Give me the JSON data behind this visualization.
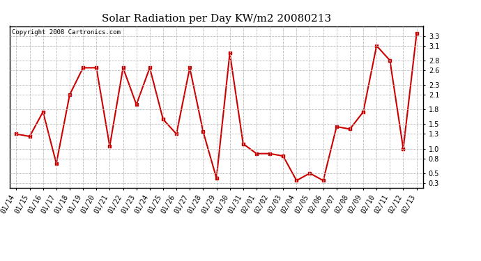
{
  "title": "Solar Radiation per Day KW/m2 20080213",
  "copyright_text": "Copyright 2008 Cartronics.com",
  "dates": [
    "01/14",
    "01/15",
    "01/16",
    "01/17",
    "01/18",
    "01/19",
    "01/20",
    "01/21",
    "01/22",
    "01/23",
    "01/24",
    "01/25",
    "01/26",
    "01/27",
    "01/28",
    "01/29",
    "01/30",
    "01/31",
    "02/01",
    "02/02",
    "02/03",
    "02/04",
    "02/05",
    "02/06",
    "02/07",
    "02/08",
    "02/09",
    "02/10",
    "02/11",
    "02/12",
    "02/13"
  ],
  "values": [
    1.3,
    1.25,
    1.75,
    0.7,
    2.1,
    2.65,
    2.65,
    1.05,
    2.65,
    1.9,
    2.65,
    1.6,
    1.3,
    2.65,
    1.35,
    0.4,
    2.95,
    1.1,
    0.9,
    0.9,
    0.85,
    0.35,
    0.5,
    0.35,
    1.45,
    1.4,
    1.75,
    3.1,
    2.8,
    1.0,
    3.35
  ],
  "line_color": "#cc0000",
  "marker": "s",
  "marker_size": 2.5,
  "line_width": 1.5,
  "bg_color": "#ffffff",
  "grid_color": "#bbbbbb",
  "ylim": [
    0.2,
    3.5
  ],
  "yticks": [
    0.3,
    0.5,
    0.8,
    1.0,
    1.3,
    1.5,
    1.8,
    2.1,
    2.3,
    2.6,
    2.8,
    3.1,
    3.3
  ],
  "title_fontsize": 11,
  "tick_fontsize": 7,
  "copyright_fontsize": 6.5,
  "fig_width": 6.9,
  "fig_height": 3.75,
  "dpi": 100
}
